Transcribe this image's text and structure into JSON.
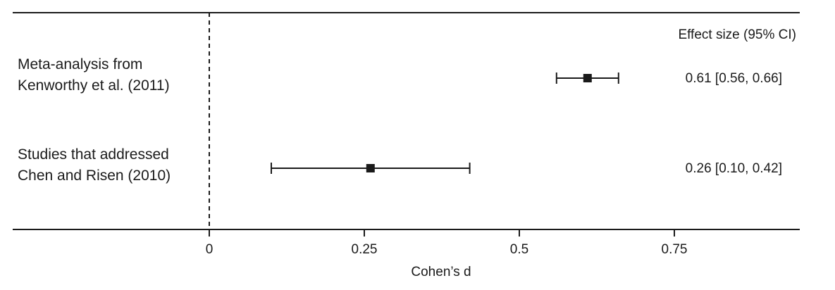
{
  "chart_data": {
    "type": "forest",
    "effect_header": "Effect size (95% CI)",
    "xlabel": "Cohen’s d",
    "xlim": [
      -0.67,
      0.95
    ],
    "xticks": [
      {
        "value": 0,
        "label": "0"
      },
      {
        "value": 0.25,
        "label": "0.25"
      },
      {
        "value": 0.5,
        "label": "0.5"
      },
      {
        "value": 0.75,
        "label": "0.75"
      }
    ],
    "reference_line": 0,
    "rows": [
      {
        "label_lines": [
          "Meta-analysis from",
          "Kenworthy et al. (2011)"
        ],
        "estimate": 0.61,
        "ci_low": 0.56,
        "ci_high": 0.66,
        "effect_text": "0.61 [0.56, 0.66]"
      },
      {
        "label_lines": [
          "Studies that addressed",
          "Chen and Risen (2010)"
        ],
        "estimate": 0.26,
        "ci_low": 0.1,
        "ci_high": 0.42,
        "effect_text": "0.26 [0.10, 0.42]"
      }
    ],
    "colors": {
      "marks": "#1a1a1a",
      "text": "#1a1a1a"
    }
  }
}
